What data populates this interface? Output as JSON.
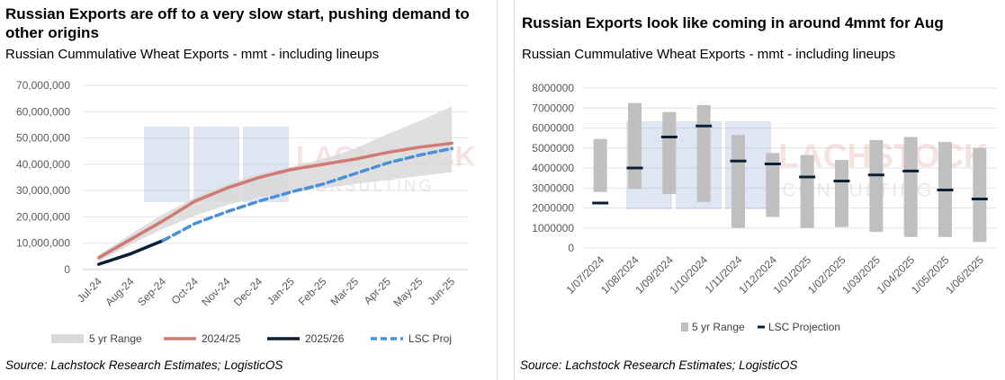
{
  "left": {
    "title": "Russian Exports are off to a very slow start, pushing demand to other origins",
    "subtitle": "Russian Cummulative Wheat Exports - mmt - including lineups",
    "source": "Source: Lachstock Research Estimates; LogisticOS",
    "watermark": "LACHSTOCK CONSULTING",
    "colors": {
      "range": "#d9d9d9",
      "2024/25": "#d07a74",
      "2025/26": "#0b1f33",
      "LSC Proj": "#4a90d9"
    }
  },
  "right": {
    "title": "Russian Exports look like coming in around 4mmt for Aug",
    "subtitle": "Russian Cummulative Wheat Exports - mmt - including lineups",
    "source": "Source: Lachstock Research Estimates; LogisticOS",
    "watermark": "LACHSTOCK CONSULTING",
    "colors": {
      "range": "#bfbfbf",
      "projection": "#0b1f33"
    }
  },
  "chart_data": [
    {
      "type": "line",
      "categories": [
        "Jul-24",
        "Aug-24",
        "Sep-24",
        "Oct-24",
        "Nov-24",
        "Dec-24",
        "Jan-25",
        "Feb-25",
        "Mar-25",
        "Apr-25",
        "May-25",
        "Jun-25"
      ],
      "ylim": [
        0,
        70000000
      ],
      "yticks": [
        0,
        10000000,
        20000000,
        30000000,
        40000000,
        50000000,
        60000000,
        70000000
      ],
      "ytick_labels": [
        "0",
        "10,000,000",
        "20,000,000",
        "30,000,000",
        "40,000,000",
        "50,000,000",
        "60,000,000",
        "70,000,000"
      ],
      "legend_position": "bottom",
      "grid": true,
      "series": [
        {
          "name": "5 yr Range",
          "kind": "band",
          "low": [
            3000000,
            9500000,
            15500000,
            20500000,
            24500000,
            27500000,
            29500000,
            31000000,
            32500000,
            34000000,
            35500000,
            37000000
          ],
          "high": [
            5500000,
            13500000,
            21000000,
            27500000,
            32500000,
            36500000,
            39000000,
            42000000,
            46000000,
            51500000,
            56500000,
            62000000
          ]
        },
        {
          "name": "2024/25",
          "kind": "line",
          "values": [
            4500000,
            11500000,
            18500000,
            26000000,
            31000000,
            35000000,
            38000000,
            40000000,
            42000000,
            44500000,
            46500000,
            48000000
          ]
        },
        {
          "name": "2025/26",
          "kind": "line",
          "values": [
            2000000,
            6000000,
            11000000,
            null,
            null,
            null,
            null,
            null,
            null,
            null,
            null,
            null
          ]
        },
        {
          "name": "LSC Proj",
          "kind": "dashed",
          "values": [
            null,
            null,
            11000000,
            17500000,
            22000000,
            26000000,
            29500000,
            32500000,
            36500000,
            40500000,
            43500000,
            46000000
          ]
        }
      ]
    },
    {
      "type": "bar",
      "categories": [
        "1/07/2024",
        "1/08/2024",
        "1/09/2024",
        "1/10/2024",
        "1/11/2024",
        "1/12/2024",
        "1/01/2025",
        "1/02/2025",
        "1/03/2025",
        "1/04/2025",
        "1/05/2025",
        "1/06/2025"
      ],
      "ylim": [
        0,
        8000000
      ],
      "yticks": [
        0,
        1000000,
        2000000,
        3000000,
        4000000,
        5000000,
        6000000,
        7000000,
        8000000
      ],
      "ytick_labels": [
        "0",
        "1000000",
        "2000000",
        "3000000",
        "4000000",
        "5000000",
        "6000000",
        "7000000",
        "8000000"
      ],
      "legend_position": "bottom",
      "grid": true,
      "series": [
        {
          "name": "5 yr Range",
          "kind": "floating-bar",
          "low": [
            2800000,
            2950000,
            2700000,
            2300000,
            1000000,
            1550000,
            1000000,
            1050000,
            800000,
            550000,
            550000,
            300000
          ],
          "high": [
            5450000,
            7250000,
            6800000,
            7150000,
            5650000,
            4750000,
            4650000,
            4400000,
            5400000,
            5550000,
            5300000,
            5000000
          ]
        },
        {
          "name": "LSC Projection",
          "kind": "marker",
          "values": [
            2250000,
            4000000,
            5550000,
            6100000,
            4350000,
            4200000,
            3550000,
            3350000,
            3650000,
            3850000,
            2900000,
            2450000
          ]
        }
      ]
    }
  ]
}
